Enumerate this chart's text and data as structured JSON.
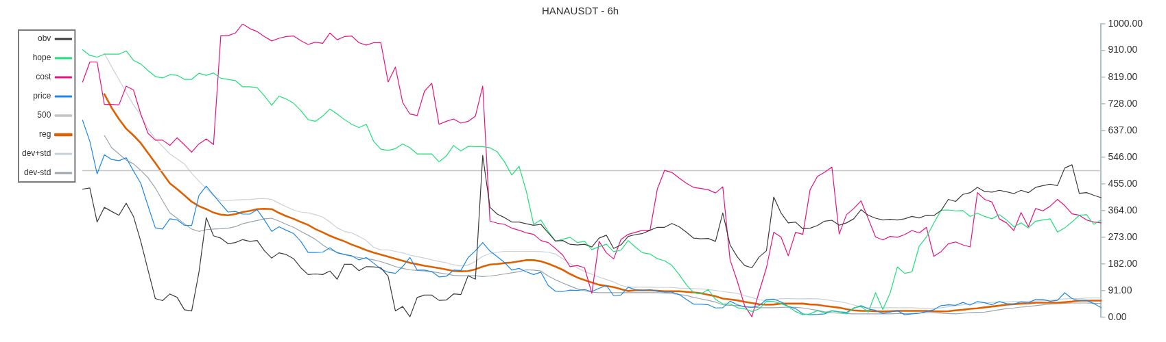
{
  "chart_data": {
    "type": "line",
    "title": "HANAUSDT - 6h",
    "categories": [
      null,
      null,
      null,
      null,
      null,
      null,
      null,
      null,
      null,
      null,
      null,
      null,
      null,
      null,
      null,
      null,
      null,
      null,
      null,
      null,
      null,
      null,
      null,
      null,
      null,
      null,
      null,
      null,
      null,
      null,
      null,
      null,
      null,
      null,
      null,
      null,
      null,
      null,
      null,
      null,
      null,
      null,
      null,
      null,
      null,
      null,
      null,
      null,
      null,
      null,
      null,
      null,
      null,
      null,
      null,
      null,
      null,
      null,
      null,
      null,
      null,
      null,
      null,
      null,
      null,
      null,
      null,
      null,
      null,
      null,
      null,
      null,
      null,
      null,
      null,
      null,
      null,
      null,
      null,
      null,
      null,
      null,
      null,
      null,
      null,
      null,
      null,
      null,
      null,
      null,
      null,
      null,
      null,
      null,
      null,
      null,
      null,
      null,
      null,
      null,
      null,
      null,
      null,
      null,
      null,
      null,
      null,
      null,
      null,
      null,
      null,
      null,
      null,
      null,
      null,
      null,
      null,
      null,
      null,
      null,
      null,
      null,
      null,
      null,
      null,
      null,
      null,
      null,
      null,
      null,
      null,
      null,
      null,
      null,
      null,
      null,
      null,
      null,
      null,
      null,
      null
    ],
    "series": [
      {
        "name": "obv",
        "color": "#3c3c3c",
        "values": [
          437,
          441,
          325,
          375,
          361,
          348,
          389,
          344,
          259,
          161,
          64,
          57,
          80,
          68,
          26,
          22,
          154,
          340,
          278,
          270,
          251,
          255,
          265,
          259,
          262,
          227,
          202,
          220,
          214,
          200,
          169,
          146,
          148,
          146,
          158,
          130,
          181,
          181,
          159,
          173,
          172,
          169,
          140,
          22,
          37,
          2,
          68,
          76,
          76,
          58,
          59,
          80,
          78,
          142,
          130,
          552,
          375,
          352,
          340,
          325,
          325,
          319,
          314,
          317,
          288,
          260,
          262,
          249,
          247,
          249,
          240,
          270,
          280,
          235,
          247,
          276,
          282,
          286,
          297,
          307,
          307,
          320,
          309,
          290,
          270,
          268,
          269,
          259,
          356,
          247,
          206,
          177,
          169,
          206,
          227,
          410,
          356,
          322,
          325,
          302,
          304,
          313,
          328,
          331,
          314,
          322,
          336,
          367,
          348,
          338,
          332,
          334,
          332,
          336,
          344,
          339,
          348,
          347,
          364,
          402,
          395,
          419,
          425,
          443,
          429,
          427,
          433,
          428,
          422,
          433,
          425,
          443,
          449,
          454,
          449,
          509,
          520,
          423,
          425,
          416,
          408
        ]
      },
      {
        "name": "hope",
        "color": "#1ee07a",
        "values": [
          912,
          893,
          887,
          897,
          897,
          897,
          908,
          876,
          864,
          841,
          821,
          816,
          827,
          825,
          811,
          811,
          832,
          825,
          833,
          815,
          811,
          807,
          786,
          786,
          783,
          755,
          723,
          754,
          744,
          730,
          705,
          674,
          668,
          686,
          710,
          693,
          674,
          658,
          647,
          658,
          600,
          573,
          569,
          575,
          591,
          578,
          557,
          557,
          557,
          530,
          550,
          586,
          567,
          583,
          582,
          582,
          578,
          564,
          530,
          485,
          515,
          429,
          317,
          332,
          293,
          260,
          266,
          273,
          255,
          259,
          231,
          241,
          249,
          224,
          229,
          262,
          239,
          220,
          216,
          200,
          193,
          177,
          146,
          111,
          84,
          80,
          95,
          61,
          46,
          46,
          33,
          29,
          20,
          29,
          55,
          54,
          47,
          37,
          20,
          9,
          12,
          23,
          16,
          22,
          18,
          12,
          33,
          37,
          18,
          84,
          27,
          83,
          172,
          150,
          155,
          243,
          274,
          321,
          365,
          366,
          363,
          364,
          344,
          355,
          344,
          336,
          350,
          332,
          309,
          322,
          305,
          328,
          332,
          336,
          291,
          305,
          325,
          348,
          350,
          317,
          332
        ]
      },
      {
        "name": "cost",
        "color": "#e6137f",
        "values": [
          802,
          870,
          870,
          726,
          726,
          724,
          788,
          775,
          693,
          627,
          604,
          604,
          586,
          612,
          588,
          563,
          591,
          608,
          589,
          960,
          960,
          969,
          1000,
          984,
          974,
          957,
          942,
          951,
          957,
          959,
          943,
          930,
          938,
          934,
          969,
          946,
          957,
          959,
          936,
          928,
          936,
          936,
          802,
          853,
          732,
          693,
          688,
          771,
          798,
          658,
          668,
          676,
          662,
          668,
          686,
          788,
          328,
          321,
          317,
          304,
          297,
          288,
          283,
          262,
          255,
          235,
          212,
          173,
          177,
          169,
          82,
          259,
          220,
          199,
          265,
          283,
          290,
          297,
          297,
          437,
          501,
          494,
          475,
          457,
          443,
          439,
          435,
          424,
          445,
          196,
          123,
          40,
          2,
          88,
          169,
          290,
          274,
          210,
          290,
          283,
          435,
          480,
          495,
          512,
          284,
          350,
          371,
          397,
          336,
          274,
          264,
          276,
          273,
          282,
          296,
          288,
          307,
          208,
          224,
          251,
          257,
          247,
          240,
          425,
          402,
          393,
          336,
          322,
          296,
          357,
          309,
          371,
          363,
          379,
          402,
          381,
          353,
          348,
          332,
          325,
          322
        ]
      },
      {
        "name": "price",
        "color": "#1e88e5",
        "values": [
          672,
          600,
          489,
          554,
          538,
          534,
          544,
          499,
          457,
          380,
          305,
          301,
          336,
          332,
          314,
          313,
          416,
          447,
          417,
          387,
          359,
          361,
          352,
          352,
          367,
          332,
          293,
          309,
          297,
          286,
          259,
          221,
          221,
          222,
          237,
          220,
          214,
          210,
          196,
          204,
          185,
          165,
          154,
          150,
          173,
          204,
          161,
          161,
          156,
          138,
          140,
          161,
          160,
          204,
          227,
          255,
          226,
          207,
          187,
          161,
          167,
          155,
          146,
          154,
          109,
          89,
          88,
          93,
          92,
          95,
          88,
          99,
          109,
          74,
          76,
          103,
          94,
          92,
          94,
          89,
          86,
          86,
          78,
          61,
          45,
          45,
          43,
          32,
          33,
          55,
          43,
          36,
          34,
          40,
          61,
          62,
          53,
          37,
          30,
          12,
          9,
          10,
          12,
          23,
          19,
          17,
          31,
          40,
          29,
          24,
          13,
          18,
          23,
          9,
          12,
          14,
          20,
          26,
          40,
          43,
          41,
          51,
          42,
          54,
          50,
          43,
          54,
          47,
          45,
          53,
          50,
          61,
          61,
          55,
          58,
          84,
          64,
          57,
          58,
          47,
          33
        ]
      },
      {
        "name": "500",
        "color": "#c4c4c4",
        "values": [
          500,
          500,
          500,
          500,
          500,
          500,
          500,
          500,
          500,
          500,
          500,
          500,
          500,
          500,
          500,
          500,
          500,
          500,
          500,
          500,
          500,
          500,
          500,
          500,
          500,
          500,
          500,
          500,
          500,
          500,
          500,
          500,
          500,
          500,
          500,
          500,
          500,
          500,
          500,
          500,
          500,
          500,
          500,
          500,
          500,
          500,
          500,
          500,
          500,
          500,
          500,
          500,
          500,
          500,
          500,
          500,
          500,
          500,
          500,
          500,
          500,
          500,
          500,
          500,
          500,
          500,
          500,
          500,
          500,
          500,
          500,
          500,
          500,
          500,
          500,
          500,
          500,
          500,
          500,
          500,
          500,
          500,
          500,
          500,
          500,
          500,
          500,
          500,
          500,
          500,
          500,
          500,
          500,
          500,
          500,
          500,
          500,
          500,
          500,
          500,
          500,
          500,
          500,
          500,
          500,
          500,
          500,
          500,
          500,
          500,
          500,
          500,
          500,
          500,
          500,
          500,
          500,
          500,
          500,
          500,
          500,
          500,
          500,
          500,
          500,
          500,
          500,
          500,
          500,
          500,
          500,
          500,
          500,
          500,
          500,
          500,
          500,
          500,
          500,
          500,
          500
        ]
      },
      {
        "name": "reg",
        "color": "#e06000",
        "values": [
          null,
          null,
          null,
          761,
          714,
          676,
          643,
          620,
          594,
          560,
          526,
          491,
          457,
          437,
          416,
          394,
          379,
          369,
          357,
          350,
          348,
          352,
          359,
          363,
          369,
          370,
          369,
          356,
          345,
          336,
          325,
          315,
          301,
          290,
          278,
          268,
          259,
          248,
          239,
          229,
          221,
          214,
          207,
          200,
          193,
          186,
          181,
          176,
          172,
          168,
          163,
          158,
          157,
          158,
          164,
          173,
          180,
          182,
          185,
          187,
          191,
          195,
          195,
          191,
          183,
          173,
          162,
          148,
          136,
          127,
          119,
          111,
          107,
          103,
          96,
          90,
          92,
          92,
          92,
          91,
          89,
          89,
          89,
          87,
          85,
          82,
          77,
          72,
          64,
          61,
          58,
          53,
          49,
          45,
          43,
          44,
          47,
          47,
          47,
          47,
          44,
          43,
          39,
          36,
          33,
          28,
          24,
          22,
          22,
          21,
          20,
          21,
          22,
          22,
          22,
          22,
          22,
          21,
          20,
          21,
          24,
          26,
          29,
          31,
          34,
          37,
          40,
          43,
          45,
          47,
          48,
          50,
          50,
          50,
          50,
          52,
          54,
          57,
          57,
          57,
          57
        ]
      },
      {
        "name": "dev+std",
        "color": "#c9d1d8",
        "values": [
          null,
          null,
          null,
          899,
          854,
          810,
          767,
          724,
          689,
          643,
          608,
          583,
          557,
          540,
          523,
          491,
          464,
          439,
          415,
          398,
          398,
          400,
          401,
          402,
          404,
          405,
          402,
          389,
          377,
          366,
          359,
          356,
          350,
          342,
          325,
          305,
          293,
          288,
          276,
          262,
          239,
          230,
          230,
          225,
          220,
          212,
          207,
          202,
          196,
          191,
          186,
          179,
          175,
          178,
          191,
          208,
          218,
          222,
          225,
          225,
          225,
          225,
          225,
          224,
          222,
          216,
          200,
          183,
          169,
          156,
          147,
          137,
          129,
          121,
          109,
          103,
          103,
          103,
          103,
          102,
          102,
          102,
          100,
          99,
          98,
          97,
          95,
          92,
          88,
          85,
          82,
          74,
          68,
          60,
          57,
          60,
          64,
          64,
          63,
          63,
          64,
          63,
          61,
          57,
          54,
          49,
          42,
          36,
          33,
          33,
          33,
          33,
          33,
          33,
          33,
          31,
          30,
          30,
          33,
          36,
          39,
          43,
          46,
          49,
          50,
          51,
          52,
          53,
          54,
          54,
          55,
          56,
          57,
          58,
          61,
          63,
          64,
          64,
          66,
          66,
          66
        ]
      },
      {
        "name": "dev-std",
        "color": "#9aa5ae",
        "values": [
          null,
          null,
          null,
          620,
          578,
          557,
          536,
          523,
          501,
          476,
          441,
          398,
          356,
          338,
          319,
          301,
          293,
          299,
          301,
          302,
          304,
          309,
          319,
          325,
          330,
          336,
          338,
          328,
          317,
          307,
          293,
          280,
          266,
          247,
          231,
          222,
          214,
          208,
          204,
          200,
          196,
          190,
          182,
          173,
          167,
          162,
          160,
          158,
          156,
          152,
          148,
          143,
          142,
          142,
          142,
          139,
          141,
          144,
          148,
          152,
          156,
          162,
          161,
          158,
          141,
          128,
          117,
          107,
          97,
          91,
          86,
          84,
          84,
          84,
          84,
          84,
          84,
          84,
          84,
          84,
          83,
          81,
          78,
          75,
          68,
          63,
          58,
          52,
          43,
          41,
          40,
          37,
          35,
          33,
          33,
          33,
          34,
          35,
          34,
          32,
          28,
          24,
          19,
          16,
          14,
          13,
          12,
          12,
          12,
          12,
          12,
          12,
          13,
          13,
          13,
          15,
          16,
          16,
          14,
          13,
          12,
          14,
          16,
          17,
          18,
          22,
          26,
          30,
          32,
          35,
          37,
          40,
          43,
          45,
          47,
          48,
          49,
          49,
          49,
          48,
          47
        ]
      }
    ],
    "ylim": [
      0,
      1000
    ],
    "yticks": [
      {
        "value": 0,
        "label": "0.00"
      },
      {
        "value": 91,
        "label": "91.00"
      },
      {
        "value": 182,
        "label": "182.00"
      },
      {
        "value": 273,
        "label": "273.00"
      },
      {
        "value": 364,
        "label": "364.00"
      },
      {
        "value": 455,
        "label": "455.00"
      },
      {
        "value": 546,
        "label": "546.00"
      },
      {
        "value": 637,
        "label": "637.00"
      },
      {
        "value": 728,
        "label": "728.00"
      },
      {
        "value": 819,
        "label": "819.00"
      },
      {
        "value": 910,
        "label": "910.00"
      },
      {
        "value": 1000,
        "label": "1000.00"
      }
    ],
    "grid": false,
    "legend": "top left",
    "tick_labels": "y",
    "marker": "none",
    "line_style": "solid"
  }
}
